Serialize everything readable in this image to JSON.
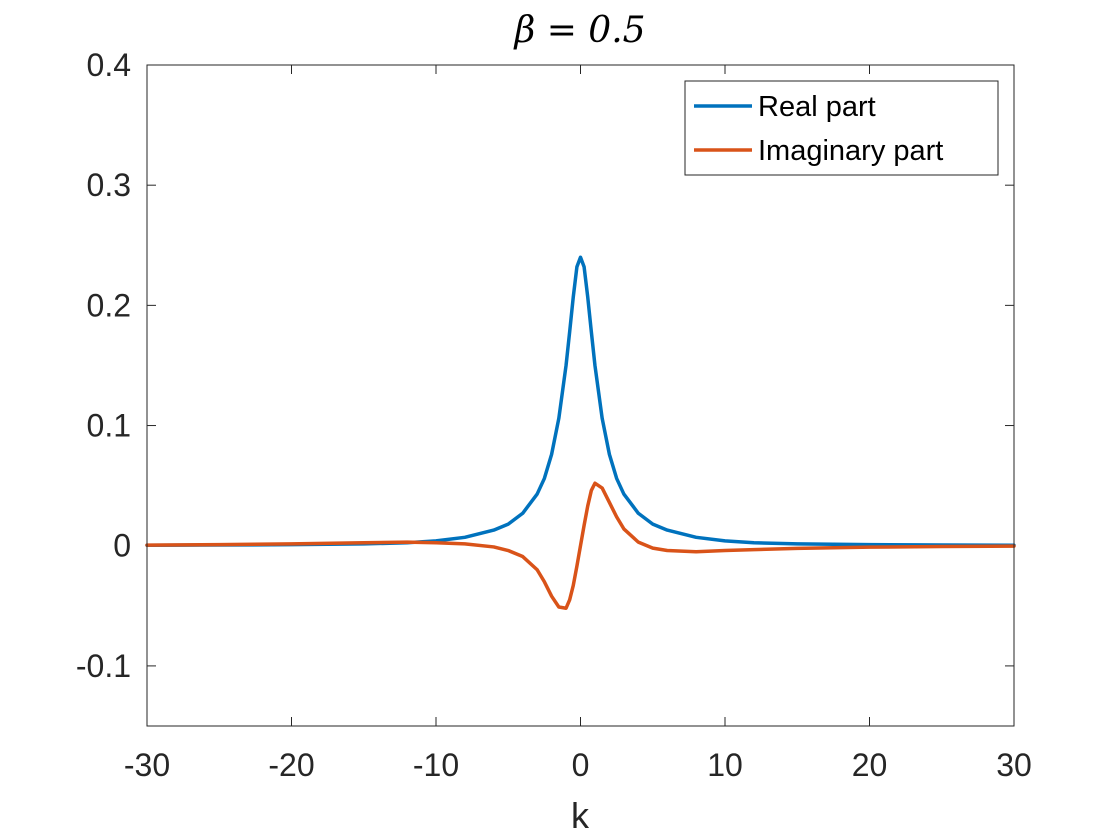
{
  "chart_data": {
    "type": "line",
    "title": "β = 0.5",
    "xlabel": "k",
    "ylabel": "",
    "xlim": [
      -30,
      30
    ],
    "ylim": [
      -0.15,
      0.4
    ],
    "xticks": [
      -30,
      -20,
      -10,
      0,
      10,
      20,
      30
    ],
    "xtick_labels": [
      "-30",
      "-20",
      "-10",
      "0",
      "10",
      "20",
      "30"
    ],
    "yticks": [
      -0.1,
      0,
      0.1,
      0.2,
      0.3,
      0.4
    ],
    "ytick_labels": [
      "-0.1",
      "0",
      "0.1",
      "0.2",
      "0.3",
      "0.4"
    ],
    "grid": false,
    "legend_position": "top-right",
    "series": [
      {
        "name": "Real part",
        "color": "#0072BD",
        "x": [
          -30,
          -25,
          -20,
          -15,
          -12,
          -10,
          -8,
          -6,
          -5,
          -4,
          -3,
          -2.5,
          -2,
          -1.5,
          -1,
          -0.75,
          -0.5,
          -0.25,
          0,
          0.25,
          0.5,
          0.75,
          1,
          1.5,
          2,
          2.5,
          3,
          4,
          5,
          6,
          8,
          10,
          12,
          15,
          20,
          25,
          30
        ],
        "y": [
          0.0004,
          0.0006,
          0.0009,
          0.0015,
          0.0025,
          0.004,
          0.007,
          0.013,
          0.018,
          0.027,
          0.043,
          0.056,
          0.076,
          0.106,
          0.15,
          0.178,
          0.207,
          0.232,
          0.24,
          0.232,
          0.207,
          0.178,
          0.15,
          0.106,
          0.076,
          0.056,
          0.043,
          0.027,
          0.018,
          0.013,
          0.007,
          0.004,
          0.0025,
          0.0015,
          0.0009,
          0.0006,
          0.0004
        ]
      },
      {
        "name": "Imaginary part",
        "color": "#D95319",
        "x": [
          -30,
          -25,
          -20,
          -15,
          -12,
          -10,
          -8,
          -6,
          -5,
          -4,
          -3,
          -2.5,
          -2,
          -1.5,
          -1,
          -0.75,
          -0.5,
          -0.25,
          0,
          0.25,
          0.5,
          0.75,
          1,
          1.5,
          2,
          2.5,
          3,
          4,
          5,
          6,
          8,
          10,
          12,
          15,
          20,
          25,
          30
        ],
        "y": [
          0.0005,
          0.0009,
          0.0015,
          0.0025,
          0.003,
          0.0025,
          0.0015,
          -0.001,
          -0.004,
          -0.009,
          -0.02,
          -0.03,
          -0.042,
          -0.051,
          -0.052,
          -0.045,
          -0.033,
          -0.017,
          0,
          0.017,
          0.033,
          0.046,
          0.052,
          0.048,
          0.036,
          0.024,
          0.014,
          0.003,
          -0.002,
          -0.004,
          -0.005,
          -0.004,
          -0.0032,
          -0.0022,
          -0.0012,
          -0.0006,
          -0.0003
        ]
      }
    ]
  }
}
